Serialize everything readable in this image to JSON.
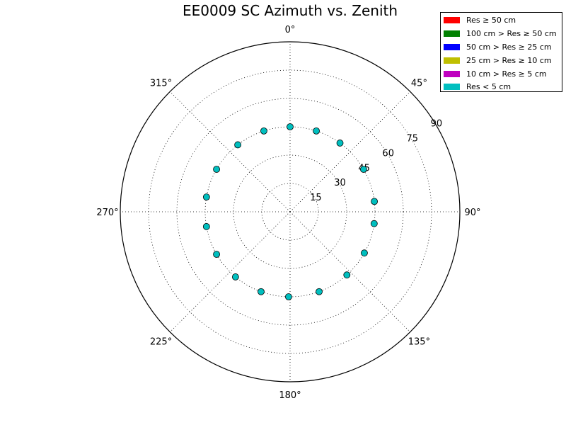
{
  "chart_data": {
    "type": "scatter",
    "projection": "polar",
    "title": "EE0009 SC Azimuth vs. Zenith",
    "theta_direction": "clockwise",
    "theta_zero": "north",
    "azimuth_ticks": [
      "0°",
      "45°",
      "90°",
      "135°",
      "180°",
      "225°",
      "270°",
      "315°"
    ],
    "radial_ticks": [
      "15",
      "30",
      "45",
      "60",
      "75",
      "90"
    ],
    "rlim": [
      0,
      90
    ],
    "grid": true,
    "legend_placement": "top-right",
    "legend": [
      {
        "label": "Res ≥ 50 cm",
        "color": "#ff0000"
      },
      {
        "label": "100 cm > Res ≥ 50 cm",
        "color": "#008000"
      },
      {
        "label": "50 cm > Res ≥ 25 cm",
        "color": "#0000ff"
      },
      {
        "label": "25 cm > Res ≥ 10 cm",
        "color": "#bfbf00"
      },
      {
        "label": "10 cm > Res ≥ 5 cm",
        "color": "#bf00bf"
      },
      {
        "label": "Res < 5 cm",
        "color": "#00bfbf"
      }
    ],
    "series": [
      {
        "name": "Res < 5 cm",
        "color": "#00bfbf",
        "points": [
          {
            "azimuth": 0,
            "zenith": 45
          },
          {
            "azimuth": 18,
            "zenith": 45
          },
          {
            "azimuth": 36,
            "zenith": 45
          },
          {
            "azimuth": 60,
            "zenith": 45
          },
          {
            "azimuth": 83,
            "zenith": 45
          },
          {
            "azimuth": 98,
            "zenith": 45
          },
          {
            "azimuth": 119,
            "zenith": 45
          },
          {
            "azimuth": 138,
            "zenith": 45
          },
          {
            "azimuth": 160,
            "zenith": 45
          },
          {
            "azimuth": 181,
            "zenith": 45
          },
          {
            "azimuth": 200,
            "zenith": 45
          },
          {
            "azimuth": 220,
            "zenith": 45
          },
          {
            "azimuth": 240,
            "zenith": 45
          },
          {
            "azimuth": 260,
            "zenith": 45
          },
          {
            "azimuth": 280,
            "zenith": 45
          },
          {
            "azimuth": 300,
            "zenith": 45
          },
          {
            "azimuth": 322,
            "zenith": 45
          },
          {
            "azimuth": 342,
            "zenith": 45
          }
        ]
      }
    ]
  }
}
